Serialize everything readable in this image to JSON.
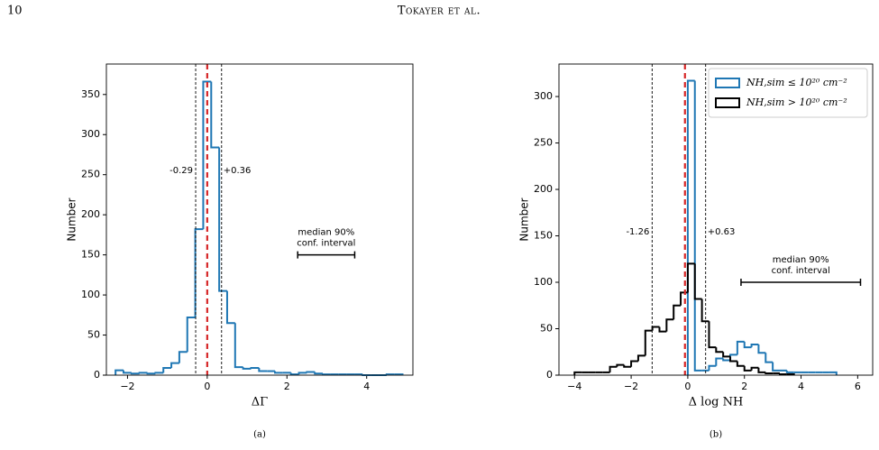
{
  "header": {
    "page_number": "10",
    "running_head": "Tokayer et al."
  },
  "chart_data": [
    {
      "type": "histogram",
      "caption": "(a)",
      "xlabel": "ΔΓ",
      "ylabel": "Number",
      "xlim": [
        -2.53,
        5.16
      ],
      "ylim": [
        0,
        388
      ],
      "xticks": [
        {
          "value": -2,
          "label": "−2"
        },
        0,
        2,
        4
      ],
      "yticks": [
        0,
        50,
        100,
        150,
        200,
        250,
        300,
        350
      ],
      "series": [
        {
          "color": "#1f77b4",
          "bins": [
            -2.3,
            -2.1,
            -1.9,
            -1.7,
            -1.5,
            -1.3,
            -1.1,
            -0.9,
            -0.7,
            -0.5,
            -0.3,
            -0.1,
            0.1,
            0.3,
            0.5,
            0.7,
            0.9,
            1.1,
            1.3,
            1.5,
            1.7,
            1.9,
            2.1,
            2.3,
            2.5,
            2.7,
            2.9,
            3.1,
            3.3,
            3.5,
            3.7,
            3.9,
            4.1,
            4.3,
            4.5,
            4.7,
            4.9
          ],
          "values": [
            6,
            3,
            2,
            3,
            2,
            3,
            9,
            15,
            29,
            72,
            182,
            366,
            284,
            105,
            65,
            10,
            8,
            9,
            5,
            5,
            3,
            3,
            1,
            3,
            4,
            2,
            1,
            1,
            1,
            1,
            1,
            0,
            0,
            0,
            1,
            1
          ]
        }
      ],
      "reference_line": {
        "x": 0,
        "color": "#d62728"
      },
      "dashed_lines": [
        {
          "value": -0.29,
          "label": "-0.29"
        },
        {
          "value": 0.36,
          "label": "+0.36"
        }
      ],
      "interval": {
        "label": [
          "median 90%",
          "conf. interval"
        ],
        "x": [
          2.27,
          3.7
        ],
        "y": 150
      }
    },
    {
      "type": "histogram",
      "caption": "(b)",
      "xlabel": "Δ log NH",
      "ylabel": "Number",
      "xlim": [
        -4.55,
        6.53
      ],
      "ylim": [
        0,
        335
      ],
      "xticks": [
        {
          "value": -4,
          "label": "−4"
        },
        {
          "value": -2,
          "label": "−2"
        },
        0,
        2,
        4,
        6
      ],
      "yticks": [
        0,
        50,
        100,
        150,
        200,
        250,
        300
      ],
      "legend": "upper right",
      "series": [
        {
          "name": "NH,sim ≤ 10²⁰ cm⁻²",
          "color": "#1f77b4",
          "bins": [
            0,
            0.25,
            0.5,
            0.75,
            1,
            1.25,
            1.5,
            1.75,
            2,
            2.25,
            2.5,
            2.75,
            3,
            3.25,
            3.5,
            3.75,
            4,
            4.25,
            4.5,
            4.75,
            5,
            5.25
          ],
          "values": [
            317,
            5,
            5,
            10,
            18,
            16,
            22,
            36,
            30,
            33,
            24,
            14,
            5,
            5,
            3,
            3,
            3,
            3,
            3,
            3,
            3
          ]
        },
        {
          "name": "NH,sim > 10²⁰ cm⁻²",
          "color": "#000000",
          "bins": [
            -4,
            -3.75,
            -3.5,
            -3.25,
            -3,
            -2.75,
            -2.5,
            -2.25,
            -2,
            -1.75,
            -1.5,
            -1.25,
            -1,
            -0.75,
            -0.5,
            -0.25,
            0,
            0.25,
            0.5,
            0.75,
            1,
            1.25,
            1.5,
            1.75,
            2,
            2.25,
            2.5,
            2.75,
            3,
            3.25,
            3.5,
            3.75
          ],
          "values": [
            3,
            3,
            3,
            3,
            3,
            9,
            11,
            9,
            15,
            21,
            48,
            52,
            47,
            60,
            75,
            89,
            120,
            82,
            58,
            30,
            25,
            20,
            15,
            10,
            5,
            8,
            3,
            2,
            2,
            1,
            1
          ]
        }
      ],
      "reference_line": {
        "x": -0.1,
        "color": "#d62728"
      },
      "dashed_lines": [
        {
          "value": -1.26,
          "label": "-1.26"
        },
        {
          "value": 0.63,
          "label": "+0.63"
        }
      ],
      "interval": {
        "label": [
          "median 90%",
          "conf. interval"
        ],
        "x": [
          1.88,
          6.1
        ],
        "y": 100
      }
    }
  ]
}
